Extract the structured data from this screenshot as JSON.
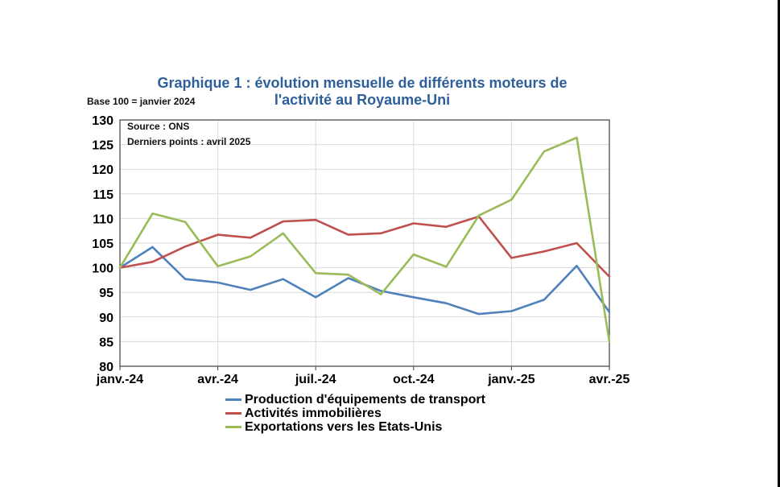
{
  "chart_data": {
    "type": "line",
    "title": [
      "Graphique 1 : évolution mensuelle de différents moteurs de",
      "l'activité au Royaume-Uni"
    ],
    "subtitle": "Base 100 = janvier 2024",
    "annotations": [
      "Source : ONS",
      "Derniers points : avril 2025"
    ],
    "xlabel": "",
    "ylabel": "",
    "x": [
      "janv.-24",
      "févr.-24",
      "mars-24",
      "avr.-24",
      "mai-24",
      "juin-24",
      "juil.-24",
      "août-24",
      "sept.-24",
      "oct.-24",
      "nov.-24",
      "déc.-24",
      "janv.-25",
      "févr.-25",
      "mars-25",
      "avr.-25"
    ],
    "x_tick_labels": [
      "janv.-24",
      "avr.-24",
      "juil.-24",
      "oct.-24",
      "janv.-25",
      "avr.-25"
    ],
    "ylim": [
      80,
      130
    ],
    "y_ticks": [
      80,
      85,
      90,
      95,
      100,
      105,
      110,
      115,
      120,
      125,
      130
    ],
    "grid": true,
    "legend_position": "bottom",
    "series": [
      {
        "name": "Production d'équipements de transport",
        "color": "#4f81bd",
        "values": [
          100,
          104.2,
          97.7,
          97.0,
          95.5,
          97.7,
          94.0,
          97.9,
          95.3,
          94.0,
          92.8,
          90.6,
          91.2,
          93.5,
          100.4,
          91.0
        ]
      },
      {
        "name": "Activités immobilières",
        "color": "#c0504d",
        "values": [
          100,
          101.2,
          104.3,
          106.7,
          106.1,
          109.4,
          109.7,
          106.7,
          107.0,
          109.0,
          108.3,
          110.4,
          102.0,
          103.3,
          105.0,
          98.2
        ]
      },
      {
        "name": "Exportations vers les Etats-Unis",
        "color": "#9bbb59",
        "values": [
          100,
          111.0,
          109.3,
          100.3,
          102.3,
          107.0,
          98.9,
          98.6,
          94.6,
          102.7,
          100.2,
          110.6,
          113.8,
          123.6,
          126.4,
          85.0
        ]
      }
    ]
  }
}
